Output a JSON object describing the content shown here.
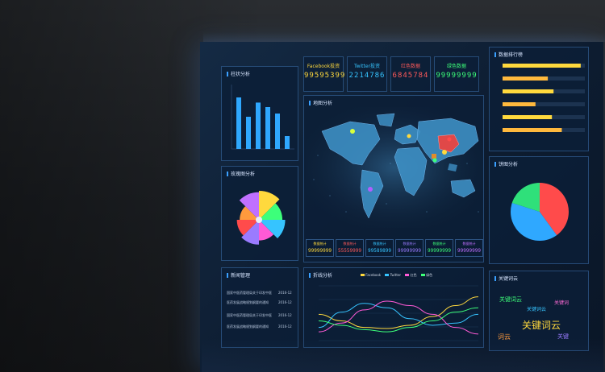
{
  "kpis": [
    {
      "label": "Facebook投资",
      "value": "99595399",
      "color": "#ffd93d"
    },
    {
      "label": "Twitter投资",
      "value": "2214786",
      "color": "#36c4ff"
    },
    {
      "label": "红色数据",
      "value": "6845784",
      "color": "#ff5a5a"
    },
    {
      "label": "绿色数据",
      "value": "99999999",
      "color": "#3dff7a"
    }
  ],
  "panels": {
    "bar": {
      "title": "柱状分析"
    },
    "map": {
      "title": "地图分析"
    },
    "rank": {
      "title": "数据排行榜"
    },
    "rose": {
      "title": "玫瑰图分析"
    },
    "pie": {
      "title": "饼图分析"
    },
    "news": {
      "title": "新闻管理"
    },
    "line": {
      "title": "折线分析",
      "legend": [
        "Facebook",
        "Twitter",
        "红色",
        "绿色"
      ]
    },
    "cloud": {
      "title": "关键词云"
    }
  },
  "map_stats": [
    {
      "label": "数据统计",
      "value": "99999999",
      "color": "#ffd93d"
    },
    {
      "label": "数据统计",
      "value": "55559999",
      "color": "#ff5a5a"
    },
    {
      "label": "数据统计",
      "value": "99589899",
      "color": "#36c4ff"
    },
    {
      "label": "数据统计",
      "value": "99999999",
      "color": "#9a7bff"
    },
    {
      "label": "数据统计",
      "value": "99999999",
      "color": "#3dff7a"
    },
    {
      "label": "数据统计",
      "value": "99999999",
      "color": "#c070ff"
    }
  ],
  "news_items": [
    {
      "text": "国家中医药管理局关于印发中医",
      "date": "2016-12"
    },
    {
      "text": "医药发展战略规划纲要的通知",
      "date": "2016-12"
    },
    {
      "text": "国家中医药管理局关于印发中医",
      "date": "2016-12"
    },
    {
      "text": "医药发展战略规划纲要的通知",
      "date": "2016-12"
    }
  ],
  "cloud_words": [
    {
      "text": "关键词云",
      "color": "#ffd93d"
    },
    {
      "text": "关键词云",
      "color": "#3dff7a"
    },
    {
      "text": "关键词云",
      "color": "#36c4ff"
    },
    {
      "text": "关键词",
      "color": "#ff6bd6"
    },
    {
      "text": "词云",
      "color": "#ff9a3d"
    },
    {
      "text": "关键",
      "color": "#9a7bff"
    }
  ],
  "chart_data": [
    {
      "type": "bar",
      "categories": [
        "",
        "",
        "",
        "",
        "",
        ""
      ],
      "values": [
        80,
        50,
        72,
        65,
        55,
        20
      ],
      "ylim": [
        0,
        100
      ]
    },
    {
      "type": "bar",
      "orientation": "horizontal",
      "categories": [
        "",
        "",
        "",
        "",
        "",
        ""
      ],
      "values": [
        95,
        55,
        62,
        40,
        60,
        72
      ],
      "xlim": [
        0,
        100
      ]
    },
    {
      "type": "pie",
      "categories": [
        "",
        "",
        ""
      ],
      "values": [
        40,
        40,
        20
      ],
      "colors": [
        "#ff4b4b",
        "#2fa8ff",
        "#2fe07a"
      ]
    },
    {
      "type": "pie",
      "variant": "rose",
      "categories": [
        "",
        "",
        "",
        "",
        "",
        "",
        "",
        ""
      ],
      "values": [
        30,
        22,
        26,
        18,
        24,
        20,
        16,
        28
      ]
    },
    {
      "type": "line",
      "x": [
        1,
        2,
        3,
        4,
        5,
        6,
        7,
        8
      ],
      "series": [
        {
          "values": [
            120,
            90,
            60,
            55,
            70,
            110,
            160,
            200
          ],
          "color": "#ffd93d"
        },
        {
          "values": [
            60,
            130,
            170,
            150,
            100,
            70,
            80,
            120
          ],
          "color": "#36c4ff"
        },
        {
          "values": [
            40,
            80,
            140,
            180,
            160,
            120,
            60,
            30
          ],
          "color": "#ff5ad6"
        },
        {
          "values": [
            90,
            70,
            50,
            40,
            60,
            90,
            130,
            150
          ],
          "color": "#3dff7a"
        }
      ],
      "ylim": [
        0,
        250
      ]
    }
  ]
}
